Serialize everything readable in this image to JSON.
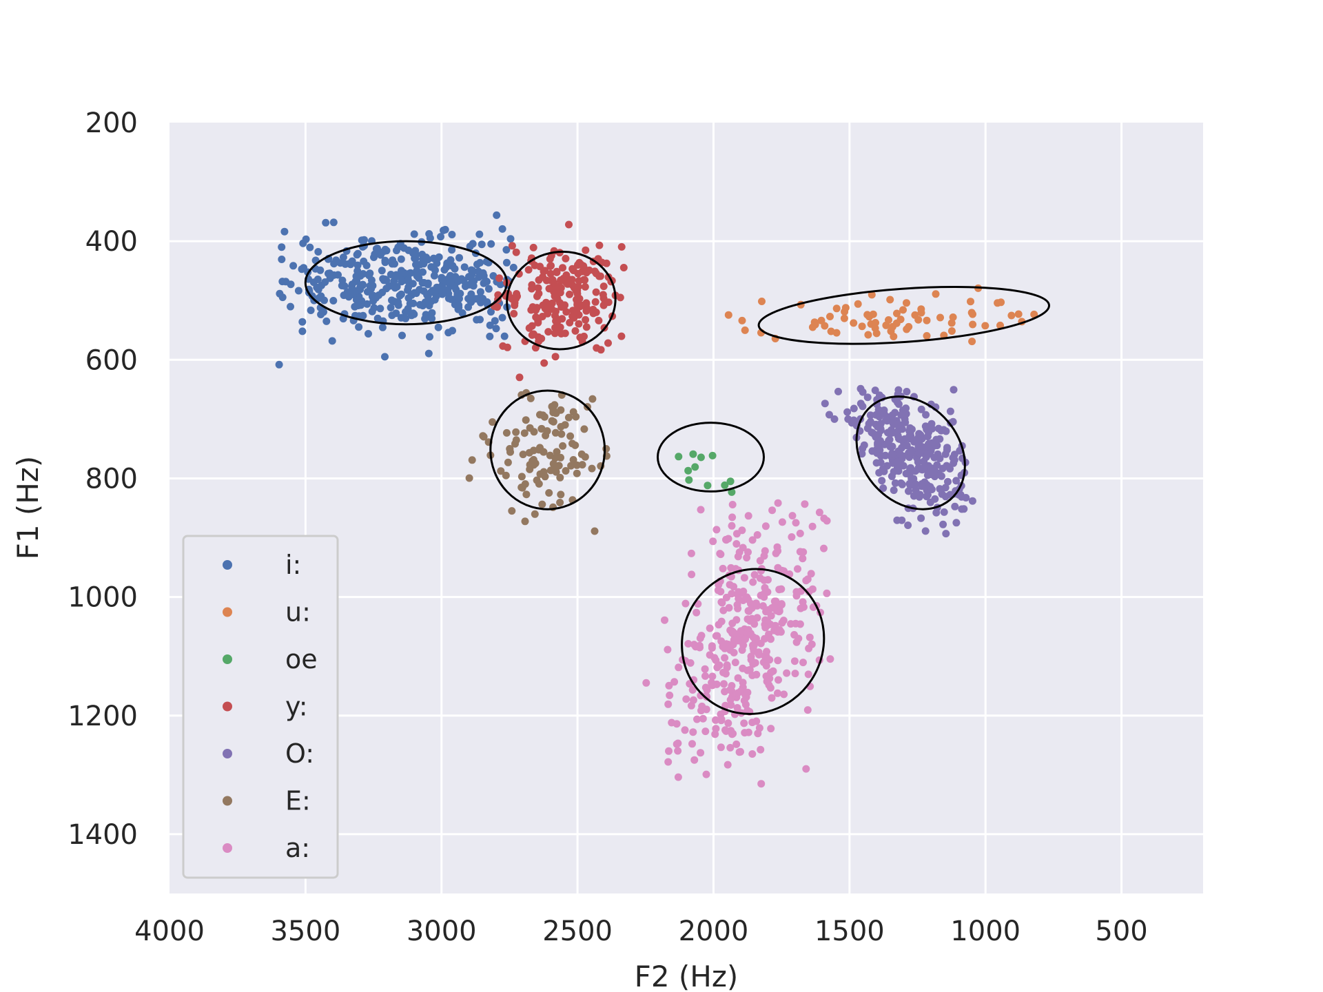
{
  "chart_data": {
    "type": "scatter",
    "title": "",
    "xlabel": "F2 (Hz)",
    "ylabel": "F1 (Hz)",
    "xlim": [
      4000,
      200
    ],
    "ylim": [
      1500,
      200
    ],
    "x_inverted": true,
    "y_inverted": true,
    "x_ticks": [
      4000,
      3500,
      3000,
      2500,
      2000,
      1500,
      1000,
      500
    ],
    "y_ticks": [
      200,
      400,
      600,
      800,
      1000,
      1200,
      1400
    ],
    "grid": true,
    "legend_position": "lower-left",
    "series": [
      {
        "name": "i:",
        "color": "#4c72b0",
        "n": 380,
        "cx": 3120,
        "cy": 470,
        "sx": 230,
        "sy": 40,
        "rho": 0.0,
        "seed": 11,
        "xrange": [
          3600,
          2730
        ],
        "yrange": [
          355,
          620
        ]
      },
      {
        "name": "u:",
        "color": "#dd8452",
        "n": 70,
        "cx": 1300,
        "cy": 530,
        "sx": 300,
        "sy": 22,
        "rho": 0.25,
        "seed": 23,
        "xrange": [
          1950,
          790
        ],
        "yrange": [
          460,
          610
        ]
      },
      {
        "name": "oe",
        "color": "#55a868",
        "n": 11,
        "cx": 2040,
        "cy": 770,
        "sx": 110,
        "sy": 45,
        "rho": 0.0,
        "seed": 31,
        "xrange": [
          2240,
          1840
        ],
        "yrange": [
          690,
          840
        ]
      },
      {
        "name": "y:",
        "color": "#c44e52",
        "n": 200,
        "cx": 2570,
        "cy": 490,
        "sx": 110,
        "sy": 45,
        "rho": 0.1,
        "seed": 47,
        "xrange": [
          2860,
          2320
        ],
        "yrange": [
          340,
          635
        ]
      },
      {
        "name": "O:",
        "color": "#8172b3",
        "n": 300,
        "cx": 1270,
        "cy": 760,
        "sx": 120,
        "sy": 55,
        "rho": -0.5,
        "seed": 59,
        "xrange": [
          1600,
          1030
        ],
        "yrange": [
          645,
          895
        ]
      },
      {
        "name": "E:",
        "color": "#937860",
        "n": 110,
        "cx": 2610,
        "cy": 750,
        "sx": 120,
        "sy": 60,
        "rho": 0.0,
        "seed": 67,
        "xrange": [
          2900,
          2360
        ],
        "yrange": [
          645,
          895
        ]
      },
      {
        "name": "a:",
        "color": "#da8bc3",
        "n": 380,
        "cx": 1880,
        "cy": 1070,
        "sx": 140,
        "sy": 115,
        "rho": 0.45,
        "seed": 79,
        "xrange": [
          2260,
          1570
        ],
        "yrange": [
          840,
          1320
        ]
      }
    ],
    "ellipses": [
      {
        "series": "i:",
        "cx": 3130,
        "cy": 470,
        "rx": 370,
        "ry": 70,
        "angle": 0
      },
      {
        "series": "y:",
        "cx": 2560,
        "cy": 500,
        "rx": 200,
        "ry": 82,
        "angle": 8
      },
      {
        "series": "u:",
        "cx": 1300,
        "cy": 525,
        "rx": 535,
        "ry": 45,
        "angle": 4
      },
      {
        "series": "oe",
        "cx": 2010,
        "cy": 764,
        "rx": 195,
        "ry": 58,
        "angle": 0
      },
      {
        "series": "O:",
        "cx": 1275,
        "cy": 757,
        "rx": 225,
        "ry": 82,
        "angle": -50
      },
      {
        "series": "E:",
        "cx": 2610,
        "cy": 752,
        "rx": 210,
        "ry": 100,
        "angle": 0
      },
      {
        "series": "a:",
        "cx": 1855,
        "cy": 1075,
        "rx": 270,
        "ry": 118,
        "angle": 57
      }
    ]
  }
}
